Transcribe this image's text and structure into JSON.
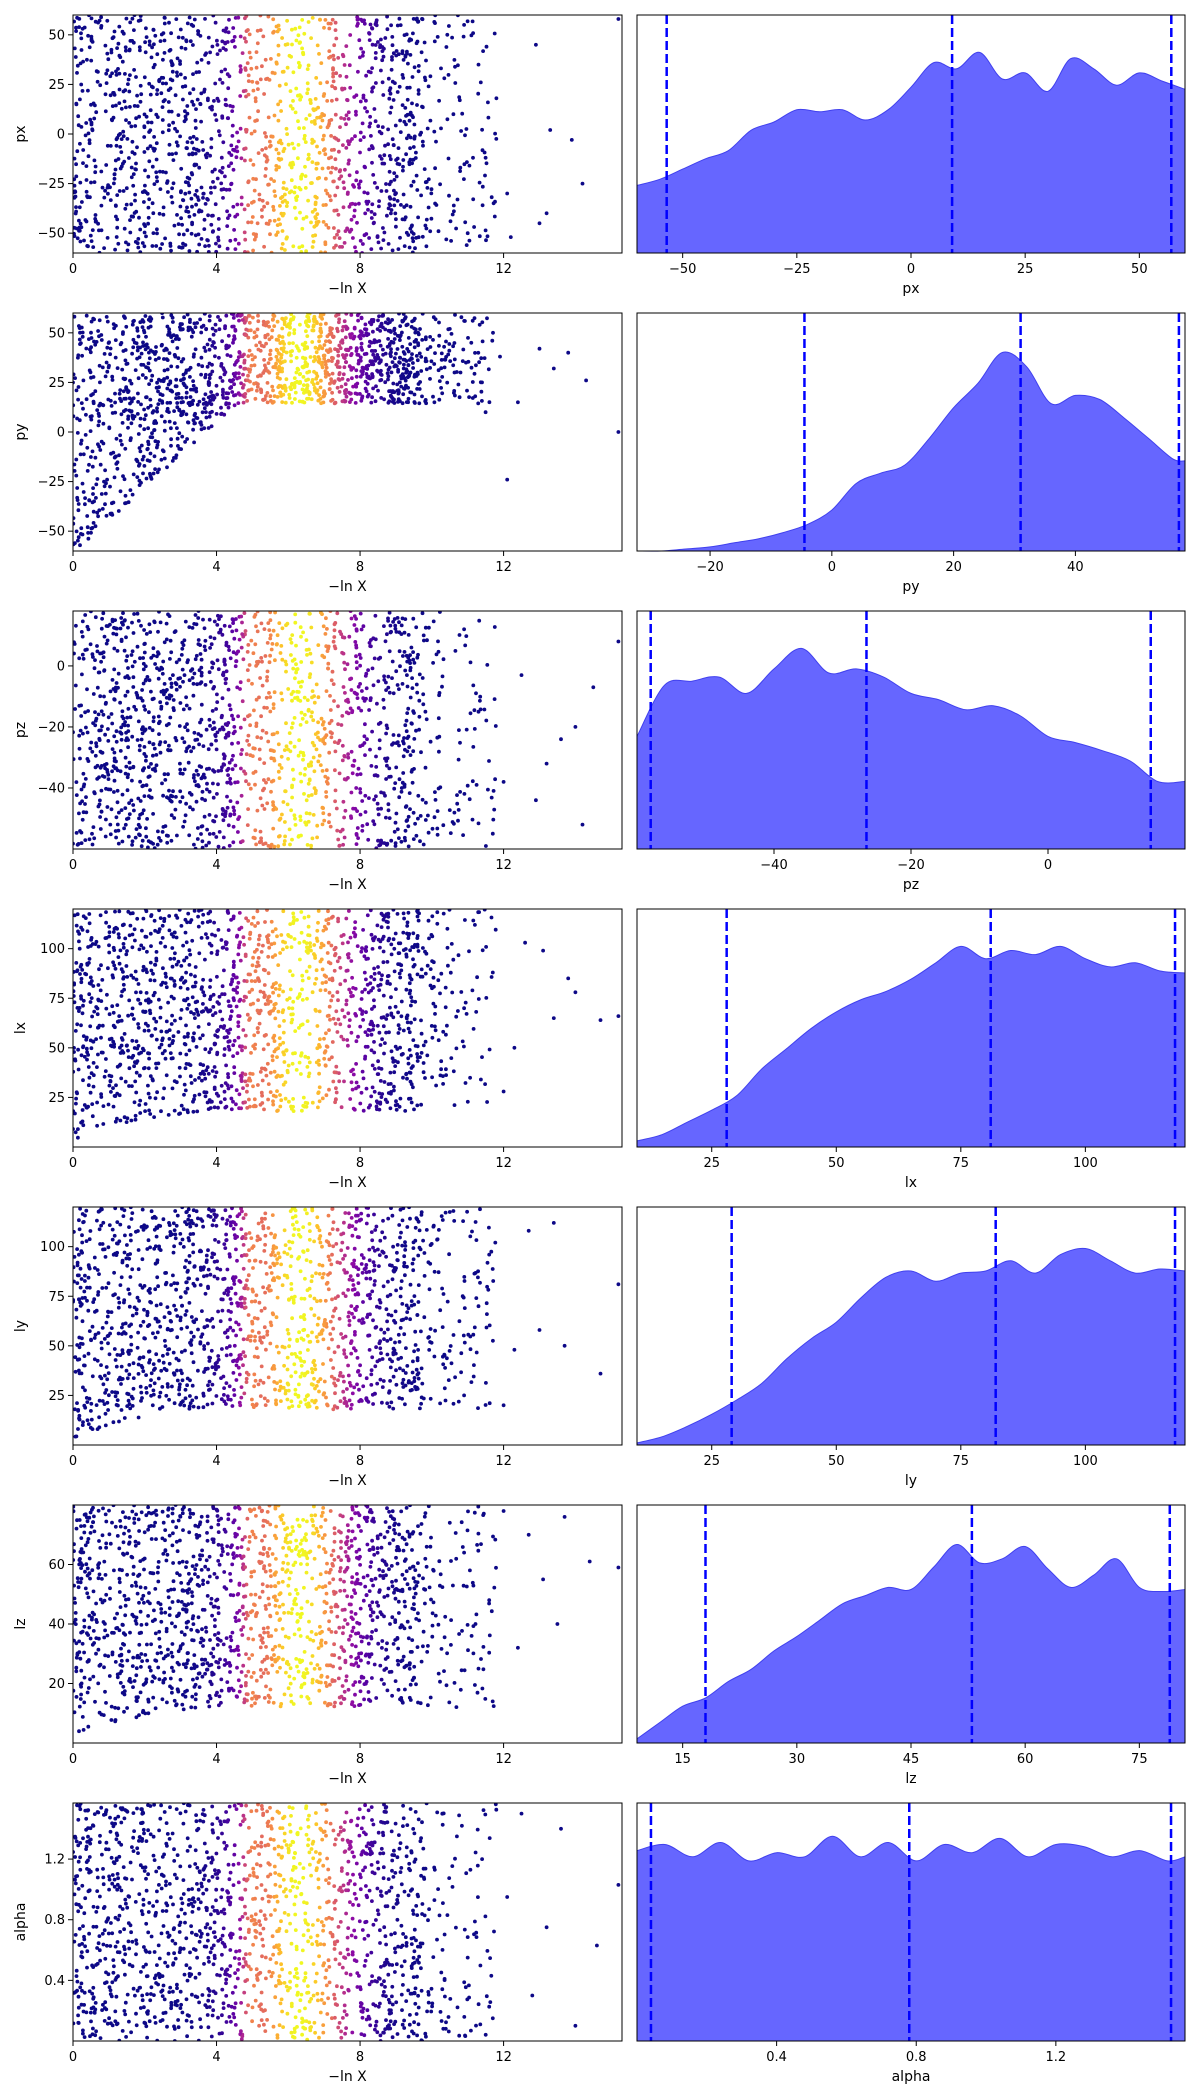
{
  "figure": {
    "type": "dynesty trace plot"
  },
  "chart_data": [
    {
      "param": "px",
      "trace": {
        "type": "scatter",
        "xlabel": "−ln X",
        "ylabel": "px",
        "xlim": [
          0,
          15.3
        ],
        "ylim": [
          -60,
          60
        ],
        "xticks": [
          0,
          4,
          8,
          12
        ],
        "xtick_labels": [
          "0",
          "4",
          "8",
          "12"
        ],
        "yticks": [
          50,
          25,
          0,
          -25,
          -50
        ],
        "ytick_labels": [
          "50",
          "25",
          "0",
          "−25",
          "−50"
        ],
        "lower_edge": "uniform",
        "sparse_points": [
          [
            15.2,
            58
          ],
          [
            14.2,
            -25
          ],
          [
            13.9,
            -3
          ],
          [
            13.3,
            2
          ],
          [
            13.2,
            -40
          ],
          [
            13.0,
            -45
          ],
          [
            12.9,
            45
          ],
          [
            12.2,
            -52
          ],
          [
            12.1,
            -30
          ],
          [
            11.8,
            18
          ],
          [
            11.5,
            -12
          ],
          [
            11.3,
            35
          ],
          [
            11.0,
            -50
          ],
          [
            10.9,
            55
          ],
          [
            10.6,
            10
          ]
        ]
      },
      "marginal": {
        "type": "area",
        "xlabel": "px",
        "xlim": [
          -60,
          60
        ],
        "xticks": [
          -50,
          -25,
          0,
          25,
          50
        ],
        "xtick_labels": [
          "−50",
          "−25",
          "0",
          "25",
          "50"
        ],
        "quantiles": [
          -53.5,
          9,
          57
        ],
        "x": [
          -60,
          -55,
          -50,
          -45,
          -40,
          -35,
          -30,
          -25,
          -20,
          -15,
          -10,
          -5,
          0,
          5,
          10,
          15,
          20,
          25,
          30,
          35,
          40,
          45,
          50,
          55,
          60
        ],
        "density": [
          0.33,
          0.36,
          0.41,
          0.46,
          0.5,
          0.6,
          0.64,
          0.7,
          0.69,
          0.7,
          0.65,
          0.7,
          0.81,
          0.93,
          0.9,
          0.98,
          0.85,
          0.88,
          0.79,
          0.95,
          0.9,
          0.82,
          0.88,
          0.84,
          0.8
        ]
      }
    },
    {
      "param": "py",
      "trace": {
        "type": "scatter",
        "xlabel": "−ln X",
        "ylabel": "py",
        "xlim": [
          0,
          15.3
        ],
        "ylim": [
          -60,
          60
        ],
        "xticks": [
          0,
          4,
          8,
          12
        ],
        "xtick_labels": [
          "0",
          "4",
          "8",
          "12"
        ],
        "yticks": [
          50,
          25,
          0,
          -25,
          -50
        ],
        "ytick_labels": [
          "50",
          "25",
          "0",
          "−25",
          "−50"
        ],
        "lower_edge": "diagonal",
        "sparse_points": [
          [
            15.2,
            0
          ],
          [
            14.3,
            26
          ],
          [
            13.8,
            40
          ],
          [
            13.4,
            32
          ],
          [
            13.0,
            42
          ],
          [
            12.4,
            15
          ],
          [
            12.1,
            -24
          ],
          [
            11.9,
            38
          ],
          [
            11.5,
            10
          ],
          [
            11.1,
            45
          ],
          [
            10.8,
            30
          ],
          [
            10.5,
            52
          ]
        ]
      },
      "marginal": {
        "type": "area",
        "xlabel": "py",
        "xlim": [
          -32,
          58
        ],
        "xticks": [
          -20,
          0,
          20,
          40
        ],
        "xtick_labels": [
          "−20",
          "0",
          "20",
          "40"
        ],
        "quantiles": [
          -4.5,
          31,
          57
        ],
        "x": [
          -32,
          -28,
          -24,
          -20,
          -16,
          -12,
          -8,
          -4,
          0,
          4,
          8,
          12,
          16,
          20,
          24,
          28,
          32,
          36,
          40,
          44,
          48,
          52,
          56,
          58
        ],
        "density": [
          0.0,
          0.0,
          0.01,
          0.02,
          0.04,
          0.06,
          0.09,
          0.13,
          0.2,
          0.33,
          0.38,
          0.42,
          0.55,
          0.7,
          0.82,
          0.97,
          0.9,
          0.72,
          0.76,
          0.74,
          0.65,
          0.55,
          0.45,
          0.44
        ]
      }
    },
    {
      "param": "pz",
      "trace": {
        "type": "scatter",
        "xlabel": "−ln X",
        "ylabel": "pz",
        "xlim": [
          0,
          15.3
        ],
        "ylim": [
          -60,
          18
        ],
        "xticks": [
          0,
          4,
          8,
          12
        ],
        "xtick_labels": [
          "0",
          "4",
          "8",
          "12"
        ],
        "yticks": [
          0,
          -20,
          -40
        ],
        "ytick_labels": [
          "0",
          "−20",
          "−40"
        ],
        "lower_edge": "uniform",
        "sparse_points": [
          [
            15.2,
            8
          ],
          [
            14.5,
            -7
          ],
          [
            14.2,
            -52
          ],
          [
            14.0,
            -20
          ],
          [
            13.6,
            -24
          ],
          [
            13.2,
            -32
          ],
          [
            12.9,
            -44
          ],
          [
            12.5,
            -3
          ],
          [
            12.0,
            -38
          ],
          [
            11.7,
            -55
          ],
          [
            11.3,
            -15
          ],
          [
            10.9,
            12
          ]
        ]
      },
      "marginal": {
        "type": "area",
        "xlabel": "pz",
        "xlim": [
          -60,
          20
        ],
        "xticks": [
          -40,
          -20,
          0
        ],
        "xtick_labels": [
          "−40",
          "−20",
          "0"
        ],
        "quantiles": [
          -58,
          -26.5,
          15
        ],
        "x": [
          -60,
          -56,
          -52,
          -48,
          -44,
          -40,
          -36,
          -32,
          -28,
          -24,
          -20,
          -16,
          -12,
          -8,
          -4,
          0,
          4,
          8,
          12,
          16,
          20
        ],
        "density": [
          0.55,
          0.8,
          0.82,
          0.84,
          0.76,
          0.88,
          0.98,
          0.86,
          0.88,
          0.84,
          0.76,
          0.73,
          0.68,
          0.7,
          0.65,
          0.55,
          0.52,
          0.48,
          0.43,
          0.33,
          0.33
        ]
      }
    },
    {
      "param": "lx",
      "trace": {
        "type": "scatter",
        "xlabel": "−ln X",
        "ylabel": "lx",
        "xlim": [
          0,
          15.3
        ],
        "ylim": [
          0,
          120
        ],
        "xticks": [
          0,
          4,
          8,
          12
        ],
        "xtick_labels": [
          "0",
          "4",
          "8",
          "12"
        ],
        "yticks": [
          100,
          75,
          50,
          25
        ],
        "ytick_labels": [
          "100",
          "75",
          "50",
          "25"
        ],
        "lower_edge": "curve",
        "sparse_points": [
          [
            15.2,
            66
          ],
          [
            14.7,
            64
          ],
          [
            14.0,
            78
          ],
          [
            13.8,
            85
          ],
          [
            13.4,
            65
          ],
          [
            13.1,
            99
          ],
          [
            12.6,
            103
          ],
          [
            12.3,
            50
          ],
          [
            12.0,
            28
          ],
          [
            11.7,
            88
          ],
          [
            11.2,
            112
          ],
          [
            10.9,
            70
          ]
        ]
      },
      "marginal": {
        "type": "area",
        "xlabel": "lx",
        "xlim": [
          10,
          120
        ],
        "xticks": [
          25,
          50,
          75,
          100
        ],
        "xtick_labels": [
          "25",
          "50",
          "75",
          "100"
        ],
        "quantiles": [
          28,
          81,
          118
        ],
        "x": [
          10,
          15,
          20,
          25,
          30,
          35,
          40,
          45,
          50,
          55,
          60,
          65,
          70,
          75,
          80,
          85,
          90,
          95,
          100,
          105,
          110,
          115,
          120
        ],
        "density": [
          0.03,
          0.06,
          0.12,
          0.18,
          0.25,
          0.38,
          0.48,
          0.58,
          0.66,
          0.72,
          0.76,
          0.82,
          0.9,
          0.98,
          0.92,
          0.96,
          0.94,
          0.98,
          0.92,
          0.88,
          0.9,
          0.86,
          0.85
        ]
      }
    },
    {
      "param": "ly",
      "trace": {
        "type": "scatter",
        "xlabel": "−ln X",
        "ylabel": "ly",
        "xlim": [
          0,
          15.3
        ],
        "ylim": [
          0,
          120
        ],
        "xticks": [
          0,
          4,
          8,
          12
        ],
        "xtick_labels": [
          "0",
          "4",
          "8",
          "12"
        ],
        "yticks": [
          100,
          75,
          50,
          25
        ],
        "ytick_labels": [
          "100",
          "75",
          "50",
          "25"
        ],
        "lower_edge": "curve",
        "sparse_points": [
          [
            15.2,
            81
          ],
          [
            14.7,
            36
          ],
          [
            13.7,
            50
          ],
          [
            13.4,
            112
          ],
          [
            13.0,
            58
          ],
          [
            12.7,
            108
          ],
          [
            12.3,
            48
          ],
          [
            12.0,
            20
          ],
          [
            11.6,
            96
          ],
          [
            11.3,
            70
          ],
          [
            10.9,
            25
          ],
          [
            10.6,
            118
          ]
        ]
      },
      "marginal": {
        "type": "area",
        "xlabel": "ly",
        "xlim": [
          10,
          120
        ],
        "xticks": [
          25,
          50,
          75,
          100
        ],
        "xtick_labels": [
          "25",
          "50",
          "75",
          "100"
        ],
        "quantiles": [
          29,
          82,
          118
        ],
        "x": [
          10,
          15,
          20,
          25,
          30,
          35,
          40,
          45,
          50,
          55,
          60,
          65,
          70,
          75,
          80,
          85,
          90,
          95,
          100,
          105,
          110,
          115,
          120
        ],
        "density": [
          0.01,
          0.04,
          0.09,
          0.15,
          0.22,
          0.3,
          0.42,
          0.52,
          0.6,
          0.72,
          0.82,
          0.85,
          0.8,
          0.84,
          0.85,
          0.9,
          0.84,
          0.93,
          0.96,
          0.9,
          0.84,
          0.86,
          0.85
        ]
      }
    },
    {
      "param": "lz",
      "trace": {
        "type": "scatter",
        "xlabel": "−ln X",
        "ylabel": "lz",
        "xlim": [
          0,
          15.3
        ],
        "ylim": [
          0,
          80
        ],
        "xticks": [
          0,
          4,
          8,
          12
        ],
        "xtick_labels": [
          "0",
          "4",
          "8",
          "12"
        ],
        "yticks": [
          60,
          40,
          20
        ],
        "ytick_labels": [
          "60",
          "40",
          "20"
        ],
        "lower_edge": "curve",
        "sparse_points": [
          [
            15.2,
            59
          ],
          [
            14.4,
            61
          ],
          [
            13.7,
            76
          ],
          [
            13.5,
            40
          ],
          [
            13.1,
            55
          ],
          [
            12.7,
            70
          ],
          [
            12.4,
            32
          ],
          [
            12.0,
            78
          ],
          [
            11.6,
            48
          ],
          [
            11.3,
            25
          ],
          [
            10.9,
            64
          ],
          [
            10.5,
            74
          ]
        ]
      },
      "marginal": {
        "type": "area",
        "xlabel": "lz",
        "xlim": [
          9,
          81
        ],
        "xticks": [
          15,
          30,
          45,
          60,
          75
        ],
        "xtick_labels": [
          "15",
          "30",
          "45",
          "60",
          "75"
        ],
        "quantiles": [
          18,
          53,
          79
        ],
        "x": [
          9,
          12,
          15,
          18,
          21,
          24,
          27,
          30,
          33,
          36,
          39,
          42,
          45,
          48,
          51,
          54,
          57,
          60,
          63,
          66,
          69,
          72,
          75,
          78,
          81
        ],
        "density": [
          0.02,
          0.1,
          0.18,
          0.22,
          0.3,
          0.36,
          0.45,
          0.52,
          0.6,
          0.68,
          0.72,
          0.76,
          0.75,
          0.86,
          0.97,
          0.88,
          0.9,
          0.96,
          0.85,
          0.76,
          0.82,
          0.9,
          0.76,
          0.74,
          0.75
        ]
      }
    },
    {
      "param": "alpha",
      "trace": {
        "type": "scatter",
        "xlabel": "−ln X",
        "ylabel": "alpha",
        "xlim": [
          0,
          15.3
        ],
        "ylim": [
          0,
          1.57
        ],
        "xticks": [
          0,
          4,
          8,
          12
        ],
        "xtick_labels": [
          "0",
          "4",
          "8",
          "12"
        ],
        "yticks": [
          1.2,
          0.8,
          0.4
        ],
        "ytick_labels": [
          "1.2",
          "0.8",
          "0.4"
        ],
        "lower_edge": "uniform",
        "sparse_points": [
          [
            15.2,
            1.03
          ],
          [
            14.6,
            0.63
          ],
          [
            14.0,
            0.1
          ],
          [
            13.6,
            1.4
          ],
          [
            13.2,
            0.75
          ],
          [
            12.8,
            0.3
          ],
          [
            12.5,
            1.5
          ],
          [
            12.1,
            0.95
          ],
          [
            11.7,
            0.15
          ],
          [
            11.4,
            1.2
          ],
          [
            11.0,
            0.55
          ],
          [
            10.7,
            1.35
          ]
        ]
      },
      "marginal": {
        "type": "area",
        "xlabel": "alpha",
        "xlim": [
          0,
          1.57
        ],
        "xticks": [
          0.4,
          0.8,
          1.2
        ],
        "xtick_labels": [
          "0.4",
          "0.8",
          "1.2"
        ],
        "quantiles": [
          0.04,
          0.78,
          1.53
        ],
        "x": [
          0,
          0.08,
          0.16,
          0.24,
          0.32,
          0.4,
          0.48,
          0.56,
          0.64,
          0.72,
          0.8,
          0.88,
          0.96,
          1.04,
          1.12,
          1.2,
          1.28,
          1.36,
          1.44,
          1.52,
          1.57
        ],
        "density": [
          0.93,
          0.96,
          0.9,
          0.97,
          0.88,
          0.92,
          0.9,
          1.0,
          0.9,
          0.97,
          0.88,
          0.96,
          0.92,
          0.99,
          0.9,
          0.96,
          0.95,
          0.9,
          0.93,
          0.88,
          0.9
        ]
      }
    }
  ]
}
